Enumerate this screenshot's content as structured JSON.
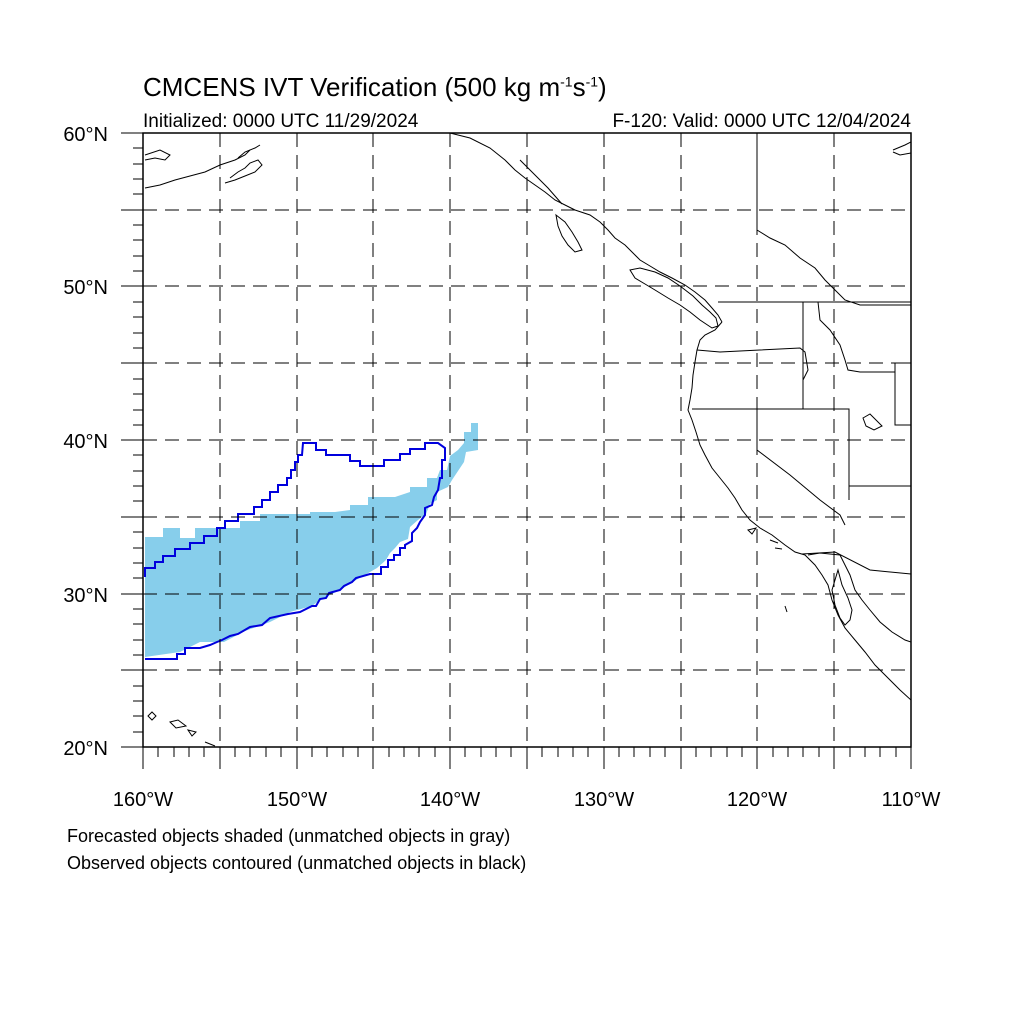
{
  "title": {
    "prefix": "CMCENS IVT Verification (500 kg m",
    "sup1": "-1",
    "mid": "s",
    "sup2": "-1",
    "suffix": ")"
  },
  "initialized": "Initialized: 0000 UTC 11/29/2024",
  "valid": "F-120: Valid: 0000 UTC 12/04/2024",
  "notes": [
    "Forecasted objects shaded (unmatched objects in gray)",
    "Observed objects contoured (unmatched objects in black)"
  ],
  "lat_labels": [
    "60°N",
    "50°N",
    "40°N",
    "30°N",
    "20°N"
  ],
  "lon_labels": [
    "160°W",
    "150°W",
    "140°W",
    "130°W",
    "120°W",
    "110°W"
  ],
  "colors": {
    "forecast_fill": "#87CEEB",
    "observed_contour": "#0000DD",
    "coastline": "#000000",
    "grid": "#000000"
  },
  "map": {
    "projection": "lat-lon",
    "lon_range": [
      -160,
      -110
    ],
    "lat_range": [
      20,
      60
    ],
    "gridlines": "dashed, every 5 degrees"
  }
}
